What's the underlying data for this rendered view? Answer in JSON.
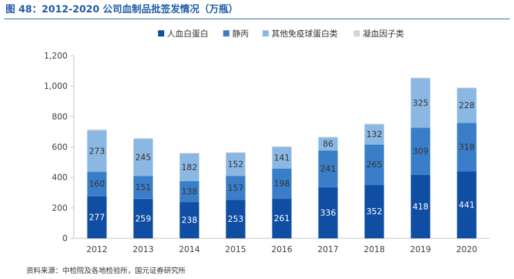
{
  "header": {
    "figure_label": "图 48：2012-2020 公司血制品批签发情况（万瓶）"
  },
  "footer": {
    "source": "资料来源：中检院及各地检验所，国元证券研究所"
  },
  "chart_data": {
    "type": "bar",
    "stacked": true,
    "title": "图 48：2012-2020 公司血制品批签发情况（万瓶）",
    "categories": [
      "2012",
      "2013",
      "2014",
      "2015",
      "2016",
      "2017",
      "2018",
      "2019",
      "2020"
    ],
    "series": [
      {
        "name": "人血白蛋白",
        "color": "#0f4ea3",
        "label_color": "#ffffff",
        "values": [
          277,
          259,
          238,
          253,
          261,
          336,
          352,
          418,
          441
        ]
      },
      {
        "name": "静丙",
        "color": "#3a7ec9",
        "label_color": "#333333",
        "values": [
          160,
          151,
          138,
          157,
          198,
          241,
          265,
          309,
          318
        ]
      },
      {
        "name": "其他免疫球蛋白类",
        "color": "#8bb8e3",
        "label_color": "#333333",
        "values": [
          273,
          245,
          182,
          152,
          141,
          86,
          132,
          325,
          228
        ]
      },
      {
        "name": "凝血因子类",
        "color": "#d4d4d4",
        "label_color": "#333333",
        "values": [
          6,
          4,
          4,
          5,
          5,
          5,
          5,
          5,
          5
        ]
      }
    ],
    "series_labels_shown": [
      true,
      true,
      true,
      false
    ],
    "yticks": [
      "0",
      "200",
      "400",
      "600",
      "800",
      "1,000",
      "1,200"
    ],
    "ylim": [
      0,
      1200
    ],
    "grid": false,
    "legend_position": "top"
  }
}
